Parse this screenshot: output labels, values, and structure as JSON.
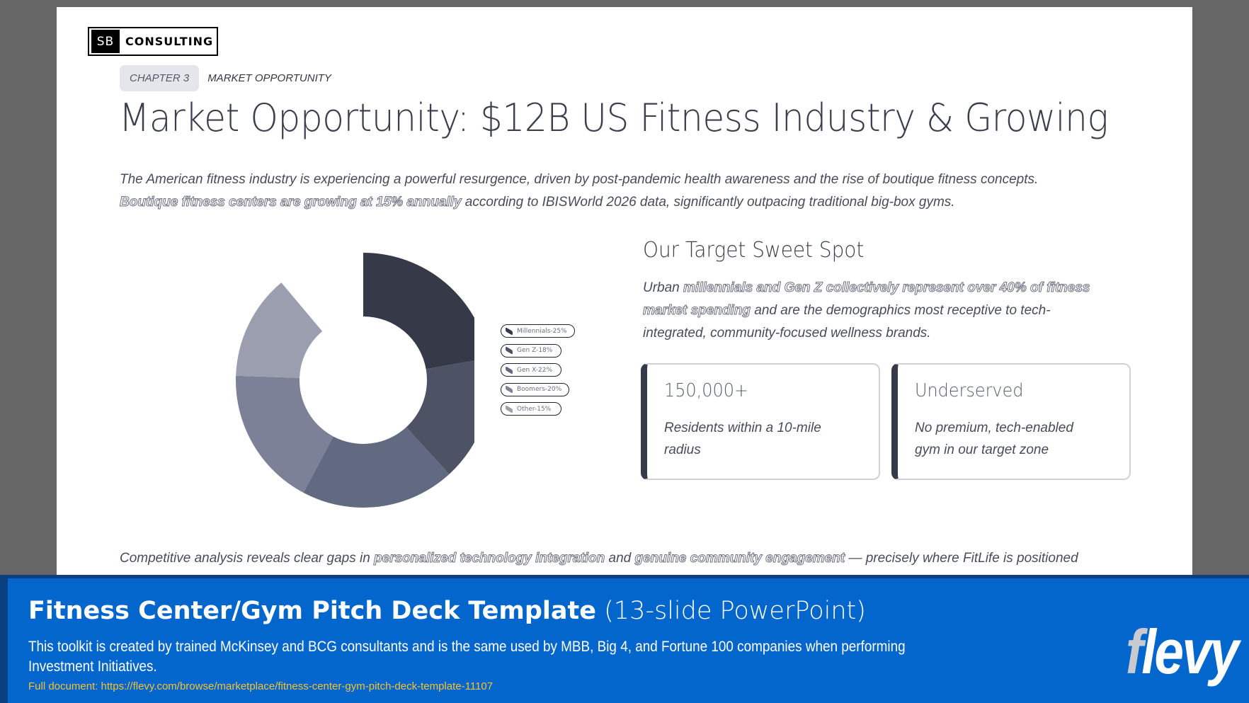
{
  "slide": {
    "logo": {
      "mark": "SB",
      "name": "CONSULTING"
    },
    "chapter": {
      "tag": "CHAPTER 3",
      "name": "MARKET OPPORTUNITY"
    },
    "title": "Market Opportunity: $12B US Fitness Industry & Growing",
    "intro": {
      "line1": "The American fitness industry is experiencing a powerful resurgence, driven by post-pandemic health awareness and the rise of boutique fitness concepts.",
      "highlight": "Boutique fitness centers are growing at 15% annually",
      "line2_rest": " according to IBISWorld 2026 data, significantly outpacing traditional big-box gyms."
    },
    "right": {
      "title": "Our Target Sweet Spot",
      "para_pre": "Urban ",
      "para_highlight": "millennials and Gen Z collectively represent over 40% of fitness market spending",
      "para_post": " and are the demographics most receptive to tech-integrated, community-focused wellness brands."
    },
    "cards": [
      {
        "big": "150,000+",
        "desc": "Residents within a 10-mile radius"
      },
      {
        "big": "Underserved",
        "desc": "No premium, tech-enabled gym in our target zone"
      }
    ],
    "bottom": {
      "pre": "Competitive analysis reveals clear gaps in ",
      "hl1": "personalized technology integration",
      "mid": " and ",
      "hl2": "genuine community engagement",
      "post": " — precisely where FitLife is positioned"
    }
  },
  "chart_data": {
    "type": "pie",
    "subtype": "donut",
    "title": "",
    "categories": [
      "Millennials",
      "Gen Z",
      "Gen X",
      "Boomers",
      "Other"
    ],
    "values": [
      25,
      18,
      22,
      20,
      15
    ],
    "unit": "%",
    "colors": [
      "#363a48",
      "#4d5265",
      "#626a82",
      "#7c8198",
      "#9a9eaf"
    ],
    "legend": {
      "position": "right",
      "labels": [
        "Millennials-25%",
        "Gen Z-18%",
        "Gen X-22%",
        "Boomers-20%",
        "Other-15%"
      ]
    }
  },
  "banner": {
    "title_bold": "Fitness Center/Gym Pitch Deck Template",
    "title_light": "(13-slide PowerPoint)",
    "description": "This toolkit is created by trained McKinsey and BCG consultants and is the same used by MBB, Big 4, and Fortune 100 companies when performing Investment Initiatives.",
    "link": "Full document: https://flevy.com/browse/marketplace/fitness-center-gym-pitch-deck-template-11107",
    "brand_f": "f",
    "brand_rest": "levy",
    "colors": {
      "outer": "#0a3f80",
      "inner": "#0366cc",
      "link": "#f4c430"
    }
  }
}
